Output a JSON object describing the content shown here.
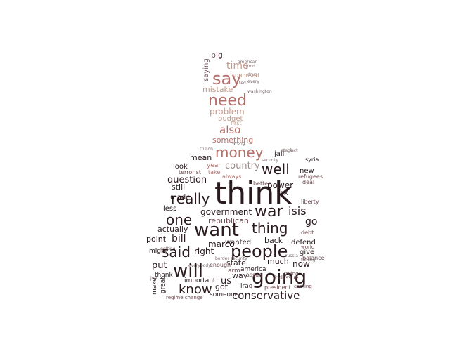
{
  "colors": {
    "background": "#ffffff",
    "dark": "#2a1a1e",
    "medium": "#6b4a50",
    "rose": "#b56f6a",
    "tan": "#c49a8a",
    "grey": "#9a8a8c"
  },
  "words": [
    {
      "text": "think",
      "tone": "dark"
    },
    {
      "text": "want",
      "tone": "dark"
    },
    {
      "text": "thing",
      "tone": "dark"
    },
    {
      "text": "going",
      "tone": "dark"
    },
    {
      "text": "people",
      "tone": "dark"
    },
    {
      "text": "will",
      "tone": "dark"
    },
    {
      "text": "said",
      "tone": "dark"
    },
    {
      "text": "know",
      "tone": "dark"
    },
    {
      "text": "war",
      "tone": "dark"
    },
    {
      "text": "well",
      "tone": "dark"
    },
    {
      "text": "really",
      "tone": "dark"
    },
    {
      "text": "one",
      "tone": "dark"
    },
    {
      "text": "conservative",
      "tone": "dark"
    },
    {
      "text": "money",
      "tone": "rose"
    },
    {
      "text": "need",
      "tone": "rose"
    },
    {
      "text": "say",
      "tone": "rose"
    },
    {
      "text": "time",
      "tone": "tan"
    },
    {
      "text": "also",
      "tone": "rose"
    },
    {
      "text": "problem",
      "tone": "tan"
    },
    {
      "text": "something",
      "tone": "rose"
    },
    {
      "text": "mistake",
      "tone": "tan"
    },
    {
      "text": "budget",
      "tone": "tan"
    },
    {
      "text": "big",
      "tone": "medium"
    },
    {
      "text": "saying",
      "tone": "medium"
    },
    {
      "text": "country",
      "tone": "grey"
    },
    {
      "text": "question",
      "tone": "dark"
    },
    {
      "text": "government",
      "tone": "dark"
    },
    {
      "text": "isis",
      "tone": "dark"
    },
    {
      "text": "power",
      "tone": "dark"
    },
    {
      "text": "go",
      "tone": "dark"
    },
    {
      "text": "republican",
      "tone": "medium"
    },
    {
      "text": "actually",
      "tone": "dark"
    },
    {
      "text": "bill",
      "tone": "dark"
    },
    {
      "text": "point",
      "tone": "dark"
    },
    {
      "text": "marco",
      "tone": "dark"
    },
    {
      "text": "wanted",
      "tone": "dark"
    },
    {
      "text": "back",
      "tone": "dark"
    },
    {
      "text": "right",
      "tone": "dark"
    },
    {
      "text": "state",
      "tone": "dark"
    },
    {
      "text": "much",
      "tone": "dark"
    },
    {
      "text": "now",
      "tone": "dark"
    },
    {
      "text": "put",
      "tone": "dark"
    },
    {
      "text": "us",
      "tone": "dark"
    },
    {
      "text": "way",
      "tone": "dark"
    },
    {
      "text": "got",
      "tone": "dark"
    },
    {
      "text": "america",
      "tone": "dark"
    },
    {
      "text": "iraq",
      "tone": "dark"
    },
    {
      "text": "mean",
      "tone": "dark"
    },
    {
      "text": "look",
      "tone": "dark"
    },
    {
      "text": "still",
      "tone": "dark"
    },
    {
      "text": "made",
      "tone": "dark"
    },
    {
      "text": "less",
      "tone": "dark"
    },
    {
      "text": "new",
      "tone": "dark"
    },
    {
      "text": "tax",
      "tone": "dark"
    },
    {
      "text": "jail",
      "tone": "dark"
    },
    {
      "text": "syria",
      "tone": "dark"
    },
    {
      "text": "defend",
      "tone": "dark"
    },
    {
      "text": "give",
      "tone": "dark"
    },
    {
      "text": "might",
      "tone": "dark"
    },
    {
      "text": "thank",
      "tone": "dark"
    },
    {
      "text": "make",
      "tone": "dark"
    },
    {
      "text": "great",
      "tone": "dark"
    },
    {
      "text": "important",
      "tone": "dark"
    },
    {
      "text": "someone",
      "tone": "dark"
    },
    {
      "text": "president",
      "tone": "medium"
    },
    {
      "text": "regime change",
      "tone": "medium"
    },
    {
      "text": "refugees",
      "tone": "medium"
    },
    {
      "text": "deal",
      "tone": "medium"
    },
    {
      "text": "liberty",
      "tone": "medium"
    },
    {
      "text": "debt",
      "tone": "medium"
    },
    {
      "text": "balance",
      "tone": "medium"
    },
    {
      "text": "world",
      "tone": "medium"
    },
    {
      "text": "arm",
      "tone": "medium"
    },
    {
      "text": "enough",
      "tone": "medium"
    },
    {
      "text": "kid",
      "tone": "medium"
    },
    {
      "text": "issue",
      "tone": "medium"
    },
    {
      "text": "assad",
      "tone": "medium"
    },
    {
      "text": "terrorist",
      "tone": "medium"
    },
    {
      "text": "year",
      "tone": "rose"
    },
    {
      "text": "take",
      "tone": "rose"
    },
    {
      "text": "always",
      "tone": "rose"
    },
    {
      "text": "better",
      "tone": "medium"
    },
    {
      "text": "trying",
      "tone": "medium"
    },
    {
      "text": "coming",
      "tone": "medium"
    },
    {
      "text": "good",
      "tone": "medium"
    },
    {
      "text": "drug",
      "tone": "medium"
    },
    {
      "text": "ted",
      "tone": "medium"
    },
    {
      "text": "washington",
      "tone": "medium"
    },
    {
      "text": "wrong",
      "tone": "tan"
    },
    {
      "text": "first",
      "tone": "tan"
    },
    {
      "text": "supposed",
      "tone": "medium"
    },
    {
      "text": "american",
      "tone": "medium"
    },
    {
      "text": "every",
      "tone": "medium"
    },
    {
      "text": "trillion",
      "tone": "medium"
    },
    {
      "text": "security",
      "tone": "medium"
    },
    {
      "text": "border security",
      "tone": "medium"
    },
    {
      "text": "getting",
      "tone": "medium"
    },
    {
      "text": "talking",
      "tone": "medium"
    },
    {
      "text": "russia",
      "tone": "medium"
    },
    {
      "text": "stage",
      "tone": "medium"
    },
    {
      "text": "fact",
      "tone": "medium"
    },
    {
      "text": "everybody",
      "tone": "medium"
    },
    {
      "text": "job",
      "tone": "medium"
    }
  ]
}
